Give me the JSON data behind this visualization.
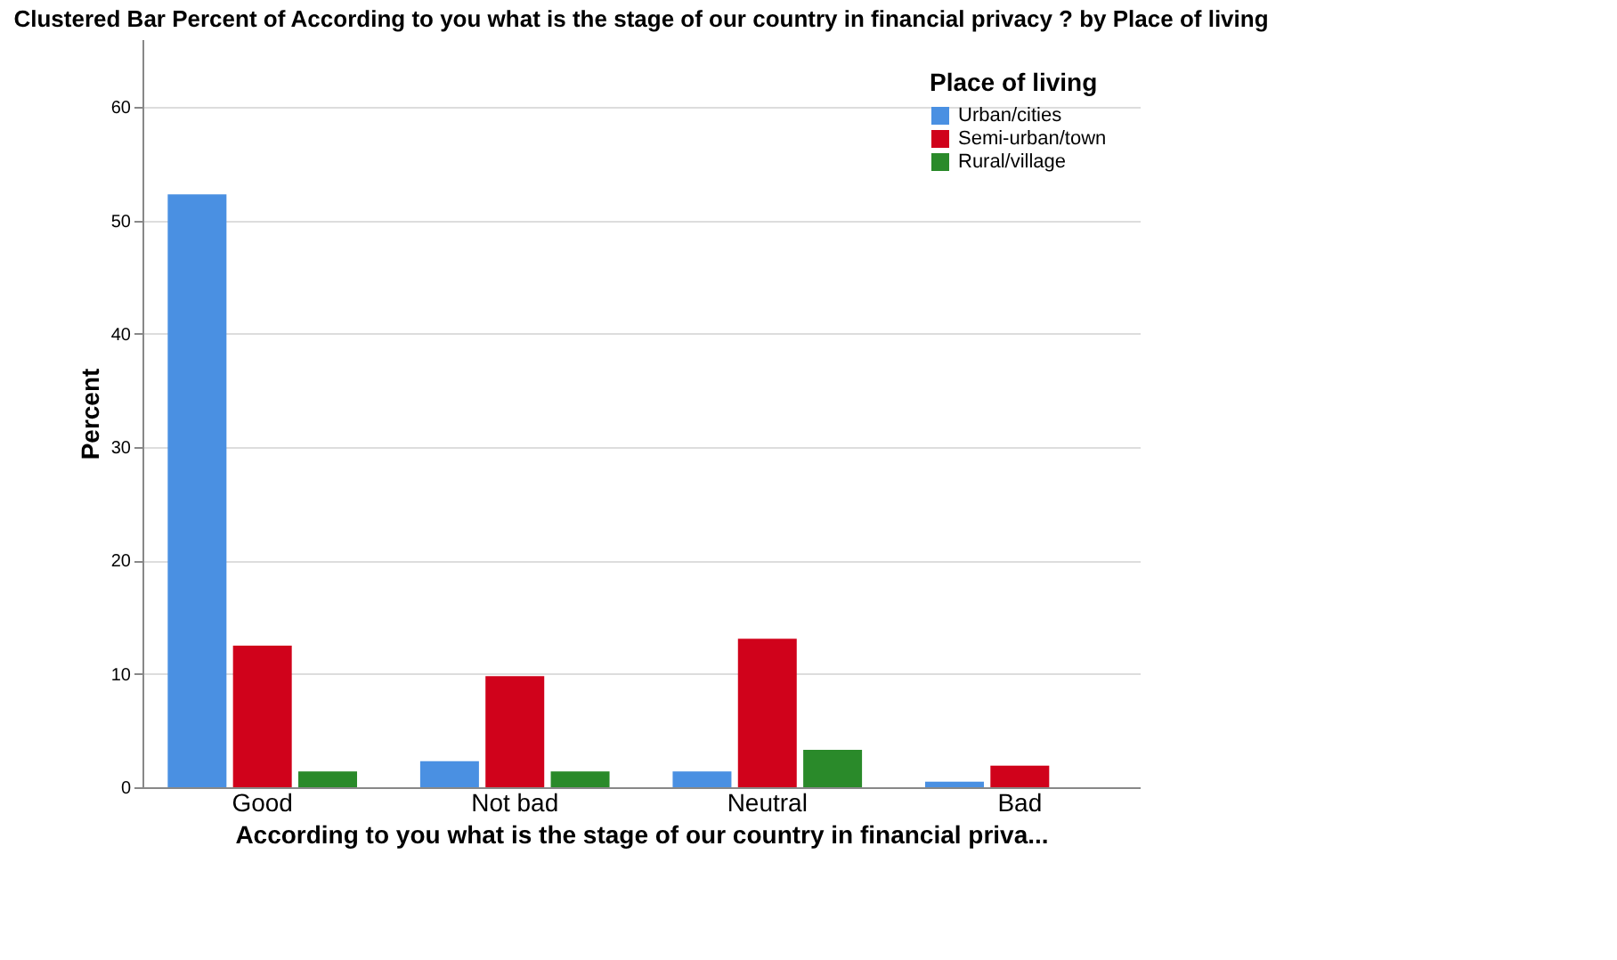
{
  "chart_data": {
    "type": "bar",
    "title": "Clustered Bar Percent of According to you what is the stage of our country in financial privacy ?  by Place of living",
    "xlabel": "According to you what is the stage of our country in financial priva...",
    "ylabel": "Percent",
    "legend_title": "Place of living",
    "legend": "top right",
    "grid": "y",
    "categories": [
      "Good",
      "Not bad",
      "Neutral",
      "Bad"
    ],
    "ylim": [
      0,
      66
    ],
    "yticks": [
      0,
      10,
      20,
      30,
      40,
      50,
      60
    ],
    "series": [
      {
        "name": "Urban/cities",
        "color": "#4a90e2",
        "values": [
          52.3,
          2.3,
          1.4,
          0.5
        ]
      },
      {
        "name": "Semi-urban/town",
        "color": "#d0021b",
        "values": [
          12.5,
          9.8,
          13.1,
          1.9
        ]
      },
      {
        "name": "Rural/village",
        "color": "#2a8a2a",
        "values": [
          1.4,
          1.4,
          3.3,
          null
        ]
      }
    ]
  }
}
